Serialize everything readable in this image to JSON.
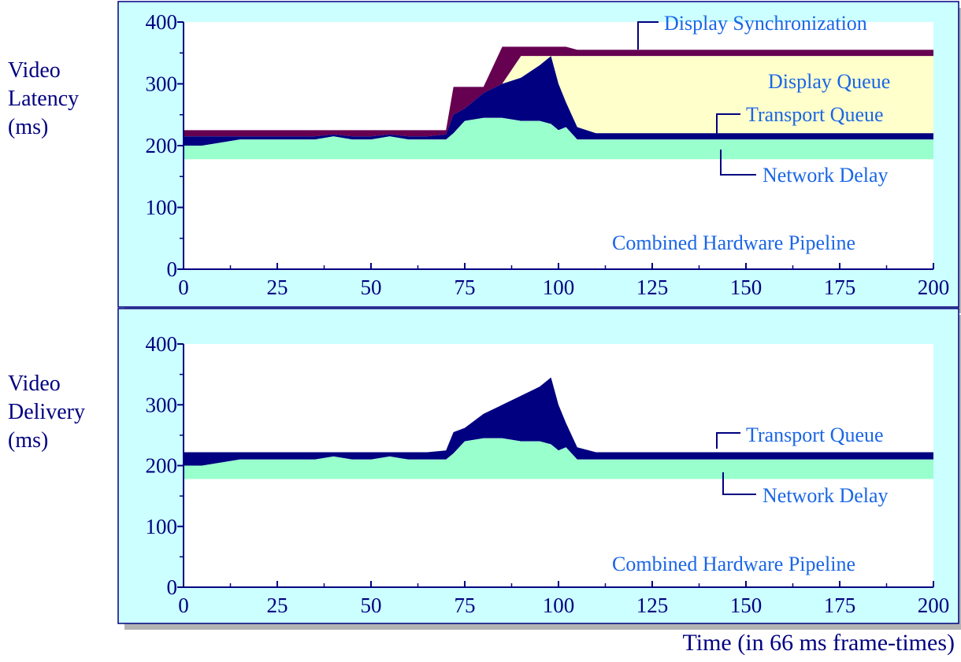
{
  "caption_x": "Time (in 66 ms frame-times)",
  "colors": {
    "panel_bg": "#ccffff",
    "panel_border": "#000080",
    "shadow": "#b3b3b3",
    "display_sync": "#660050",
    "display_queue": "#ffffcc",
    "transport_queue": "#000080",
    "network_delay": "#99ffcc",
    "annotation_text": "#1a66e6"
  },
  "chart_data": [
    {
      "type": "area",
      "ylabel_lines": [
        "Video",
        "Latency",
        "(ms)"
      ],
      "xlim": [
        0,
        200
      ],
      "ylim": [
        0,
        400
      ],
      "xticks": [
        0,
        25,
        50,
        75,
        100,
        125,
        150,
        175,
        200
      ],
      "yticks": [
        0,
        100,
        200,
        300,
        400
      ],
      "x": [
        0,
        5,
        10,
        15,
        20,
        25,
        30,
        35,
        40,
        45,
        50,
        55,
        60,
        65,
        70,
        72,
        75,
        80,
        85,
        90,
        95,
        98,
        100,
        102,
        105,
        110,
        115,
        120,
        125,
        130,
        140,
        150,
        160,
        170,
        180,
        190,
        200
      ],
      "series": [
        {
          "name": "Network Delay",
          "values": [
            200,
            200,
            205,
            210,
            210,
            210,
            210,
            210,
            215,
            210,
            210,
            215,
            210,
            210,
            210,
            220,
            240,
            245,
            245,
            240,
            240,
            235,
            225,
            230,
            210,
            210,
            210,
            210,
            210,
            210,
            210,
            210,
            210,
            210,
            210,
            210,
            210
          ]
        },
        {
          "name": "Transport Queue",
          "values": [
            215,
            215,
            215,
            215,
            215,
            215,
            215,
            215,
            218,
            215,
            215,
            218,
            215,
            215,
            218,
            250,
            260,
            285,
            300,
            310,
            330,
            345,
            300,
            270,
            230,
            220,
            220,
            220,
            220,
            220,
            220,
            220,
            220,
            220,
            220,
            220,
            220
          ]
        },
        {
          "name": "Display Queue",
          "values": [
            215,
            215,
            215,
            215,
            215,
            215,
            215,
            215,
            218,
            215,
            215,
            218,
            215,
            215,
            218,
            250,
            260,
            285,
            300,
            345,
            345,
            345,
            345,
            345,
            345,
            345,
            345,
            345,
            345,
            345,
            345,
            345,
            345,
            345,
            345,
            345,
            345
          ]
        },
        {
          "name": "Display Synchronization",
          "values": [
            225,
            225,
            225,
            225,
            225,
            225,
            225,
            225,
            225,
            225,
            225,
            225,
            225,
            225,
            225,
            295,
            295,
            295,
            360,
            360,
            360,
            360,
            360,
            360,
            355,
            355,
            355,
            355,
            355,
            355,
            355,
            355,
            355,
            355,
            355,
            355,
            355
          ]
        }
      ],
      "annotations": [
        "Display Synchronization",
        "Display Queue",
        "Transport Queue",
        "Network Delay",
        "Combined Hardware Pipeline"
      ]
    },
    {
      "type": "area",
      "ylabel_lines": [
        "Video",
        "Delivery",
        "(ms)"
      ],
      "xlim": [
        0,
        200
      ],
      "ylim": [
        0,
        400
      ],
      "xticks": [
        0,
        25,
        50,
        75,
        100,
        125,
        150,
        175,
        200
      ],
      "yticks": [
        0,
        100,
        200,
        300,
        400
      ],
      "x": [
        0,
        5,
        10,
        15,
        20,
        25,
        30,
        35,
        40,
        45,
        50,
        55,
        60,
        65,
        70,
        72,
        75,
        80,
        85,
        90,
        95,
        98,
        100,
        102,
        105,
        110,
        115,
        120,
        125,
        130,
        140,
        150,
        160,
        170,
        180,
        190,
        200
      ],
      "series": [
        {
          "name": "Network Delay",
          "values": [
            200,
            200,
            205,
            210,
            210,
            210,
            210,
            210,
            215,
            210,
            210,
            215,
            210,
            210,
            210,
            220,
            240,
            245,
            245,
            240,
            240,
            235,
            225,
            230,
            210,
            210,
            210,
            210,
            210,
            210,
            210,
            210,
            210,
            210,
            210,
            210,
            210
          ]
        },
        {
          "name": "Transport Queue",
          "values": [
            222,
            222,
            222,
            222,
            222,
            222,
            222,
            222,
            222,
            222,
            222,
            222,
            222,
            222,
            225,
            255,
            262,
            285,
            300,
            315,
            330,
            345,
            300,
            270,
            230,
            222,
            222,
            222,
            222,
            222,
            222,
            222,
            222,
            222,
            222,
            222,
            222
          ]
        }
      ],
      "annotations": [
        "Transport Queue",
        "Network Delay",
        "Combined Hardware Pipeline"
      ]
    }
  ]
}
